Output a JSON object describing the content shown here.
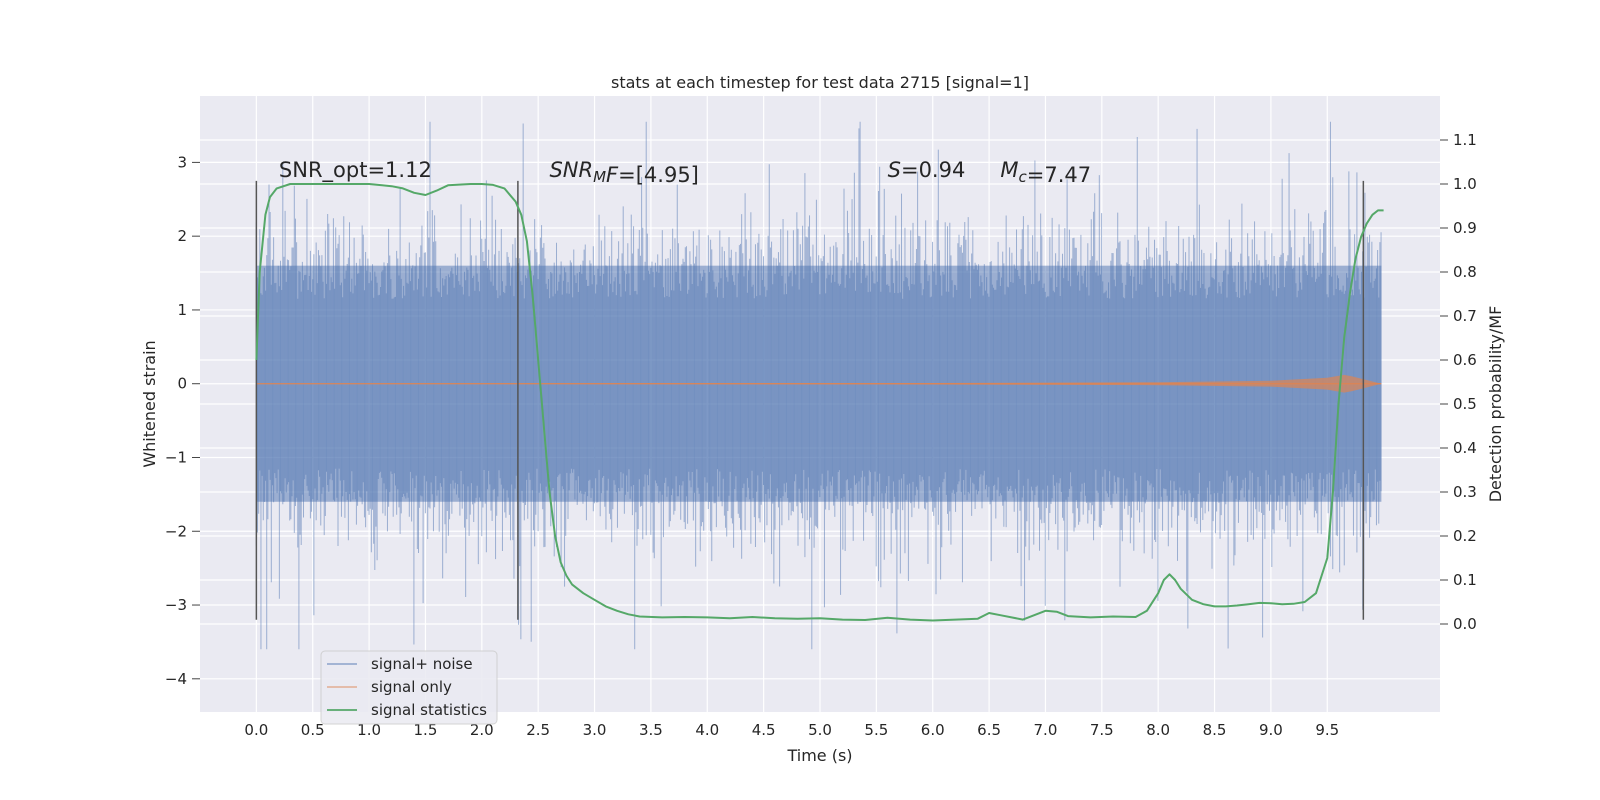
{
  "chart_data": {
    "type": "line",
    "title": "stats at each timestep for test data 2715 [signal=1]",
    "xlabel": "Time (s)",
    "ylabel": "Whitened strain",
    "ylabel_right": "Detection probability/MF",
    "xlim": [
      -0.5,
      10.5
    ],
    "ylim": [
      -4.45,
      3.9
    ],
    "ylim_right": [
      -0.2,
      1.2
    ],
    "x_ticks": [
      "0.0",
      "0.5",
      "1.0",
      "1.5",
      "2.0",
      "2.5",
      "3.0",
      "3.5",
      "4.0",
      "4.5",
      "5.0",
      "5.5",
      "6.0",
      "6.5",
      "7.0",
      "7.5",
      "8.0",
      "8.5",
      "9.0",
      "9.5"
    ],
    "x_tick_values": [
      0.0,
      0.5,
      1.0,
      1.5,
      2.0,
      2.5,
      3.0,
      3.5,
      4.0,
      4.5,
      5.0,
      5.5,
      6.0,
      6.5,
      7.0,
      7.5,
      8.0,
      8.5,
      9.0,
      9.5
    ],
    "y_ticks": [
      "−4",
      "−3",
      "−2",
      "−1",
      "0",
      "1",
      "2",
      "3"
    ],
    "y_tick_values": [
      -4,
      -3,
      -2,
      -1,
      0,
      1,
      2,
      3
    ],
    "y_right_ticks": [
      "0.0",
      "0.1",
      "0.2",
      "0.3",
      "0.4",
      "0.5",
      "0.6",
      "0.7",
      "0.8",
      "0.9",
      "1.0",
      "1.1"
    ],
    "y_right_tick_values": [
      0.0,
      0.1,
      0.2,
      0.3,
      0.4,
      0.5,
      0.6,
      0.7,
      0.8,
      0.9,
      1.0,
      1.1
    ],
    "grid": true,
    "legend_position": "lower-left",
    "series": [
      {
        "name": "signal+ noise",
        "axis": "left",
        "color": "#4c72b0",
        "t_range": [
          0.0,
          9.98
        ],
        "typical_envelope": [
          -1.6,
          1.6
        ],
        "peak_envelope": [
          -3.6,
          3.55
        ]
      },
      {
        "name": "signal only",
        "axis": "left",
        "color": "#dd8452",
        "t_range": [
          0.0,
          9.98
        ],
        "envelope": {
          "t": [
            0.0,
            6.0,
            8.0,
            9.0,
            9.5,
            9.65,
            9.72,
            9.98
          ],
          "amp": [
            0.0,
            0.01,
            0.02,
            0.04,
            0.08,
            0.12,
            0.1,
            0.0
          ]
        }
      },
      {
        "name": "signal statistics",
        "axis": "right",
        "color": "#55a868",
        "x": [
          0.0,
          0.03,
          0.08,
          0.12,
          0.18,
          0.3,
          0.5,
          0.8,
          1.0,
          1.2,
          1.3,
          1.4,
          1.5,
          1.6,
          1.7,
          1.9,
          2.0,
          2.1,
          2.2,
          2.3,
          2.35,
          2.4,
          2.45,
          2.5,
          2.55,
          2.6,
          2.65,
          2.7,
          2.75,
          2.8,
          2.9,
          3.0,
          3.1,
          3.2,
          3.3,
          3.4,
          3.6,
          3.8,
          4.0,
          4.2,
          4.4,
          4.6,
          4.8,
          5.0,
          5.2,
          5.4,
          5.6,
          5.8,
          6.0,
          6.2,
          6.4,
          6.5,
          6.6,
          6.8,
          7.0,
          7.1,
          7.2,
          7.4,
          7.6,
          7.8,
          7.9,
          8.0,
          8.05,
          8.1,
          8.15,
          8.2,
          8.3,
          8.4,
          8.5,
          8.6,
          8.7,
          8.8,
          8.9,
          9.0,
          9.1,
          9.2,
          9.3,
          9.4,
          9.5,
          9.55,
          9.6,
          9.65,
          9.7,
          9.75,
          9.8,
          9.85,
          9.9,
          9.95,
          10.0
        ],
        "y": [
          0.6,
          0.8,
          0.93,
          0.97,
          0.99,
          1.0,
          1.0,
          1.0,
          1.0,
          0.995,
          0.99,
          0.98,
          0.975,
          0.985,
          0.997,
          1.0,
          1.0,
          0.998,
          0.99,
          0.96,
          0.93,
          0.87,
          0.75,
          0.6,
          0.45,
          0.3,
          0.2,
          0.14,
          0.11,
          0.09,
          0.07,
          0.055,
          0.04,
          0.03,
          0.022,
          0.017,
          0.015,
          0.016,
          0.015,
          0.013,
          0.016,
          0.013,
          0.012,
          0.013,
          0.01,
          0.009,
          0.014,
          0.01,
          0.008,
          0.01,
          0.012,
          0.025,
          0.02,
          0.01,
          0.03,
          0.028,
          0.018,
          0.015,
          0.017,
          0.016,
          0.03,
          0.07,
          0.1,
          0.113,
          0.1,
          0.08,
          0.055,
          0.045,
          0.04,
          0.04,
          0.042,
          0.045,
          0.048,
          0.047,
          0.045,
          0.046,
          0.05,
          0.07,
          0.15,
          0.3,
          0.5,
          0.65,
          0.75,
          0.83,
          0.88,
          0.91,
          0.93,
          0.94,
          0.94
        ]
      }
    ],
    "vertical_lines": [
      0.0,
      2.32,
      9.82
    ],
    "vertical_lines_range": [
      -3.2,
      2.75
    ],
    "annotations": [
      {
        "id": "snr-opt",
        "x": 0.2,
        "y": 2.8,
        "parts": [
          {
            "t": "SNR_opt=1.12",
            "i": false
          }
        ]
      },
      {
        "id": "snr-mf",
        "x": 2.6,
        "y": 2.8,
        "parts": [
          {
            "t": "SNR",
            "i": true
          },
          {
            "t": "M",
            "i": true,
            "sub": true
          },
          {
            "t": "F",
            "i": true
          },
          {
            "t": "=[4.95]",
            "i": false
          }
        ]
      },
      {
        "id": "s-stat",
        "x": 5.6,
        "y": 2.8,
        "parts": [
          {
            "t": "S",
            "i": true
          },
          {
            "t": "=0.94",
            "i": false
          }
        ]
      },
      {
        "id": "chirp-mass",
        "x": 6.6,
        "y": 2.8,
        "parts": [
          {
            "t": "M",
            "i": true
          },
          {
            "t": "c",
            "i": true,
            "sub": true
          },
          {
            "t": "=7.47",
            "i": false
          }
        ]
      }
    ],
    "colors": {
      "plot_background": "#eaeaf2",
      "grid": "#ffffff",
      "vertical_lines": "#555555"
    }
  }
}
